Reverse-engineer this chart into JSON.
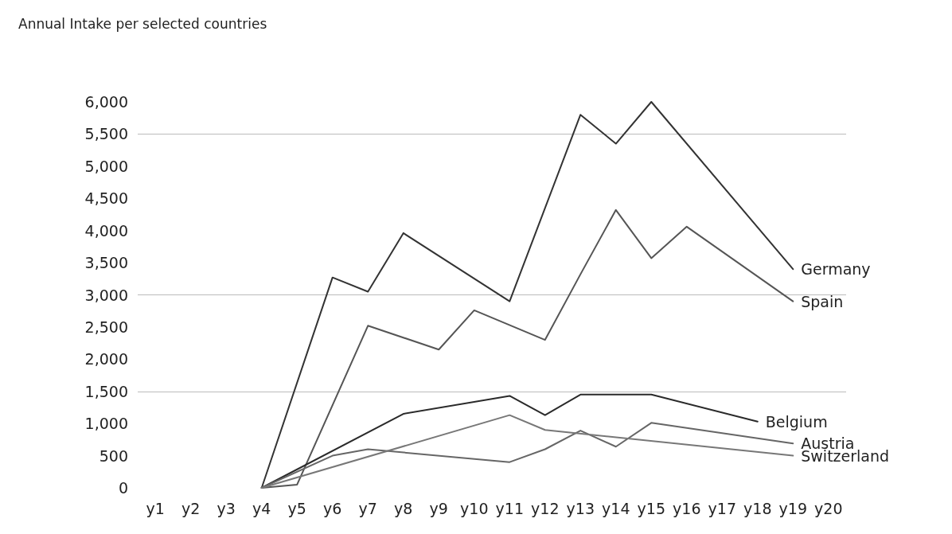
{
  "chart_data": {
    "type": "line",
    "title": "Annual Intake per selected countries",
    "categories": [
      "y1",
      "y2",
      "y3",
      "y4",
      "y5",
      "y6",
      "y7",
      "y8",
      "y9",
      "y10",
      "y11",
      "y12",
      "y13",
      "y14",
      "y15",
      "y16",
      "y17",
      "y18",
      "y19",
      "y20"
    ],
    "ylim": [
      0,
      6000
    ],
    "yticks": [
      {
        "value": 0,
        "label": "0"
      },
      {
        "value": 500,
        "label": "500"
      },
      {
        "value": 1000,
        "label": "1,000"
      },
      {
        "value": 1500,
        "label": "1,500"
      },
      {
        "value": 2000,
        "label": "2,000"
      },
      {
        "value": 2500,
        "label": "2,500"
      },
      {
        "value": 3000,
        "label": "3,000"
      },
      {
        "value": 3500,
        "label": "3,500"
      },
      {
        "value": 4000,
        "label": "4,000"
      },
      {
        "value": 4500,
        "label": "4,500"
      },
      {
        "value": 5000,
        "label": "5,000"
      },
      {
        "value": 5500,
        "label": "5,500"
      },
      {
        "value": 6000,
        "label": "6,000"
      }
    ],
    "grid": false,
    "legend": false,
    "marker": "none",
    "line_style": "solid",
    "ref_lines": [
      {
        "axis": "y",
        "value": 1500,
        "label": null,
        "color": "#bbbbbb"
      },
      {
        "axis": "y",
        "value": 3000,
        "label": null,
        "color": "#bbbbbb"
      },
      {
        "axis": "y",
        "value": 5500,
        "label": null,
        "color": "#bbbbbb"
      }
    ],
    "series": [
      {
        "name": "Germany",
        "color": "#333333",
        "x": [
          "y4",
          "y6",
          "y7",
          "y8",
          "y11",
          "y13",
          "y14",
          "y15",
          "y19"
        ],
        "values": [
          0,
          3270,
          3050,
          3960,
          2900,
          5800,
          5350,
          6000,
          3400
        ]
      },
      {
        "name": "Spain",
        "color": "#555555",
        "x": [
          "y4",
          "y5",
          "y7",
          "y9",
          "y10",
          "y12",
          "y13",
          "y14",
          "y15",
          "y16",
          "y19"
        ],
        "values": [
          0,
          50,
          2520,
          2150,
          2760,
          2300,
          3320,
          4320,
          3570,
          4060,
          2900
        ]
      },
      {
        "name": "Belgium",
        "color": "#2a2a2a",
        "x": [
          "y4",
          "y8",
          "y11",
          "y12",
          "y13",
          "y15",
          "y18"
        ],
        "values": [
          0,
          1150,
          1430,
          1130,
          1450,
          1450,
          1030
        ]
      },
      {
        "name": "Austria",
        "color": "#666666",
        "x": [
          "y4",
          "y6",
          "y7",
          "y11",
          "y12",
          "y13",
          "y14",
          "y15",
          "y19"
        ],
        "values": [
          0,
          500,
          600,
          400,
          600,
          890,
          640,
          1010,
          690
        ]
      },
      {
        "name": "Switzerland",
        "color": "#777777",
        "x": [
          "y4",
          "y11",
          "y12",
          "y19"
        ],
        "values": [
          0,
          1130,
          900,
          500
        ]
      }
    ]
  }
}
